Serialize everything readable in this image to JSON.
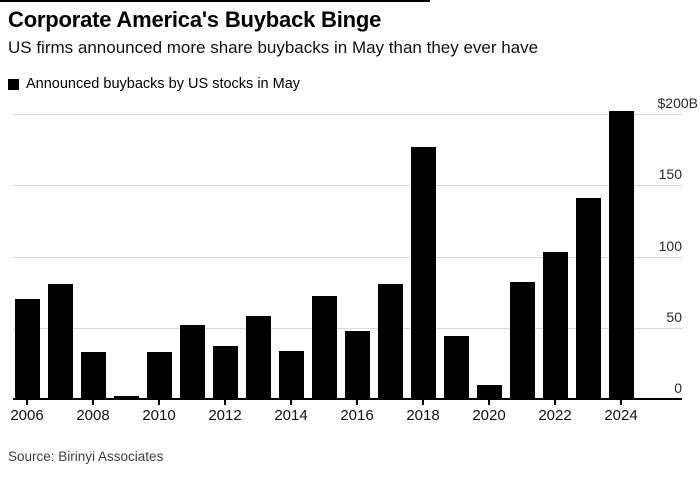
{
  "header": {
    "title": "Corporate America's Buyback Binge",
    "subtitle": "US firms announced more share buybacks in May than they ever have"
  },
  "legend": {
    "label": "Announced buybacks by US stocks in May",
    "marker_color": "#000000"
  },
  "chart_data": {
    "type": "bar",
    "title": "Announced buybacks by US stocks in May",
    "xlabel": "",
    "ylabel": "Announced buybacks ($B)",
    "unit": "$B",
    "categories": [
      2006,
      2007,
      2008,
      2009,
      2010,
      2011,
      2012,
      2013,
      2014,
      2015,
      2016,
      2017,
      2018,
      2019,
      2020,
      2021,
      2022,
      2023,
      2024
    ],
    "values": [
      70,
      81,
      33,
      2,
      33,
      52,
      37,
      58,
      34,
      72,
      48,
      81,
      177,
      44,
      10,
      82,
      103,
      141,
      202
    ],
    "ylim": [
      0,
      200
    ],
    "y_ticks": [
      0,
      50,
      100,
      150,
      200
    ],
    "y_tick_labels": [
      "0",
      "50",
      "100",
      "150",
      "$200B"
    ],
    "x_tick_years": [
      2006,
      2008,
      2010,
      2012,
      2014,
      2016,
      2018,
      2020,
      2022,
      2024
    ],
    "grid": true,
    "y_axis_side": "right",
    "legend_position": "top-left",
    "bar_color": "#000000",
    "grid_color": "#d9d9d9"
  },
  "footer": {
    "source": "Source: Birinyi Associates"
  },
  "colors": {
    "background": "#ffffff",
    "bar": "#000000",
    "grid": "#d9d9d9",
    "axis": "#000000",
    "title_text": "#000000",
    "subtitle_text": "#111111",
    "source_text": "#3f3f3f"
  }
}
